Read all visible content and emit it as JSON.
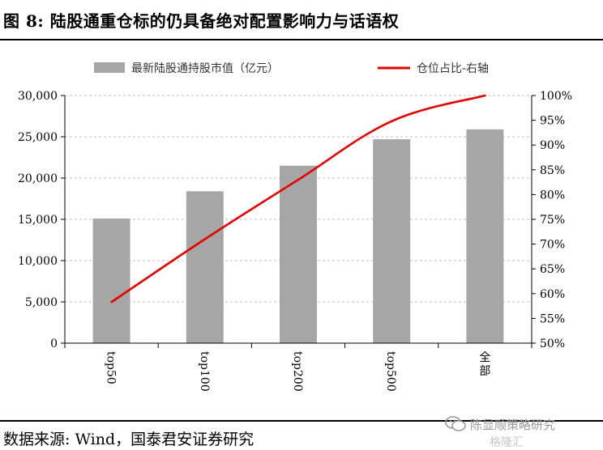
{
  "header": {
    "title": "图 8:  陆股通重仓标的仍具备绝对配置影响力与话语权"
  },
  "footer": {
    "source": "数据来源:  Wind，国泰君安证券研究"
  },
  "watermark": {
    "account": "陈显顺策略研究",
    "brand": "格隆汇"
  },
  "colors": {
    "bar": "#a6a6a6",
    "line": "#e60000",
    "grid": "#bfbfbf"
  },
  "chart_data": {
    "type": "bar",
    "categories": [
      "top50",
      "top100",
      "top200",
      "top500",
      "全部"
    ],
    "series": [
      {
        "name": "最新陆股通持股市值（亿元）",
        "type": "bar",
        "axis": "left",
        "values": [
          15100,
          18400,
          21500,
          24700,
          25900
        ]
      },
      {
        "name": "仓位占比-右轴",
        "type": "line",
        "axis": "right",
        "values": [
          58.3,
          71.0,
          83.0,
          94.8,
          100.0
        ]
      }
    ],
    "y_left": {
      "min": 0,
      "max": 30000,
      "ticks": [
        "0",
        "5,000",
        "10,000",
        "15,000",
        "20,000",
        "25,000",
        "30,000"
      ]
    },
    "y_right": {
      "min": 50,
      "max": 100,
      "ticks": [
        "50%",
        "55%",
        "60%",
        "65%",
        "70%",
        "75%",
        "80%",
        "85%",
        "90%",
        "95%",
        "100%"
      ]
    },
    "grid": true,
    "legend": "top"
  }
}
